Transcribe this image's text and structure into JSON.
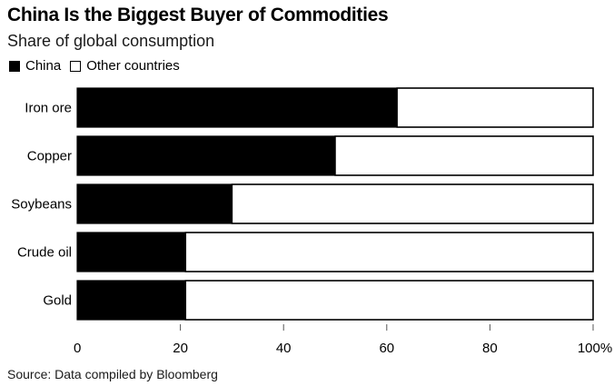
{
  "chart_data": {
    "type": "bar",
    "orientation": "horizontal",
    "stacked": true,
    "title": "China Is the Biggest Buyer of Commodities",
    "subtitle": "Share of global consumption",
    "categories": [
      "Iron ore",
      "Copper",
      "Soybeans",
      "Crude oil",
      "Gold"
    ],
    "series": [
      {
        "name": "China",
        "color": "#000000",
        "values": [
          62,
          50,
          30,
          21,
          21
        ]
      },
      {
        "name": "Other countries",
        "color": "#ffffff",
        "values": [
          38,
          50,
          70,
          79,
          79
        ]
      }
    ],
    "xlabel": "",
    "ylabel": "",
    "xlim": [
      0,
      100
    ],
    "xticks": [
      0,
      20,
      40,
      60,
      80,
      100
    ],
    "xtick_labels": [
      "0",
      "20",
      "40",
      "60",
      "80",
      "100%"
    ],
    "grid": false,
    "legend_position": "top-left",
    "source": "Source: Data compiled by Bloomberg"
  }
}
